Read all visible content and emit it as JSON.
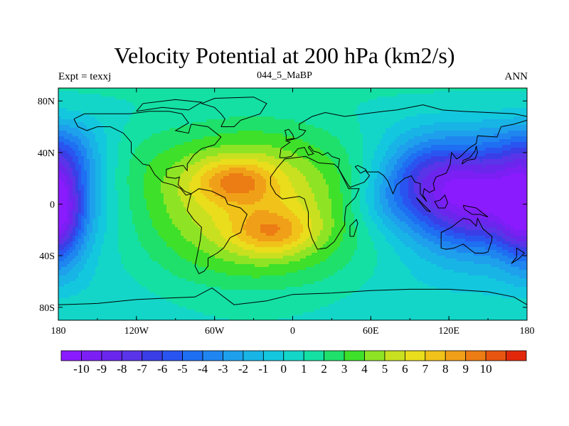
{
  "header": {
    "title": "Velocity Potential at 200 hPa (km2/s)",
    "left_label": "Expt = texxj",
    "center_label": "044_5_MaBP",
    "right_label": "ANN"
  },
  "chart_data": {
    "type": "heatmap",
    "title": "Velocity Potential at 200 hPa (km2/s)",
    "subtitle_left": "Expt = texxj",
    "subtitle_center": "044_5_MaBP",
    "subtitle_right": "ANN",
    "projection": "cylindrical-equidistant",
    "xlim": [
      -180,
      180
    ],
    "ylim": [
      -90,
      90
    ],
    "x_ticks": [
      {
        "value": -180,
        "label": "180"
      },
      {
        "value": -120,
        "label": "120W"
      },
      {
        "value": -60,
        "label": "60W"
      },
      {
        "value": 0,
        "label": "0"
      },
      {
        "value": 60,
        "label": "60E"
      },
      {
        "value": 120,
        "label": "120E"
      },
      {
        "value": 180,
        "label": "180"
      }
    ],
    "y_ticks": [
      {
        "value": 80,
        "label": "80N"
      },
      {
        "value": 40,
        "label": "40N"
      },
      {
        "value": 0,
        "label": "0"
      },
      {
        "value": -40,
        "label": "40S"
      },
      {
        "value": -80,
        "label": "80S"
      }
    ],
    "colorbar": {
      "labels": [
        "-10",
        "-9",
        "-8",
        "-7",
        "-6",
        "-5",
        "-4",
        "-3",
        "-2",
        "-1",
        "0",
        "1",
        "2",
        "3",
        "4",
        "5",
        "6",
        "7",
        "8",
        "9",
        "10"
      ],
      "levels": [
        -10,
        -9,
        -8,
        -7,
        -6,
        -5,
        -4,
        -3,
        -2,
        -1,
        0,
        1,
        2,
        3,
        4,
        5,
        6,
        7,
        8,
        9,
        10
      ],
      "colors": [
        "#8a1bff",
        "#7b1ff5",
        "#6a26ec",
        "#5a34e8",
        "#3a3ee6",
        "#2a54f0",
        "#1f6ff2",
        "#1f86f0",
        "#1ea0ec",
        "#18b4e6",
        "#13c8de",
        "#13d6c8",
        "#14e0a4",
        "#1fe06a",
        "#3ee02a",
        "#8ee424",
        "#c9e020",
        "#e9dd1c",
        "#f1c21a",
        "#f0a018",
        "#ec7c14",
        "#e85510",
        "#e2280c"
      ]
    },
    "field_description": "positive centers",
    "field_centers": [
      {
        "lon": -45,
        "lat": 18,
        "value": 10
      },
      {
        "lon": -15,
        "lat": -22,
        "value": 9.5
      },
      {
        "lon": 140,
        "lat": 5,
        "value": -10
      },
      {
        "lon": 110,
        "lat": 22,
        "value": -7
      },
      {
        "lon": -178,
        "lat": -12,
        "value": -7
      },
      {
        "lon": -175,
        "lat": 40,
        "value": -5
      },
      {
        "lon": 70,
        "lat": 0,
        "value": -2
      },
      {
        "lon": -120,
        "lat": 30,
        "value": 0.5
      }
    ]
  }
}
